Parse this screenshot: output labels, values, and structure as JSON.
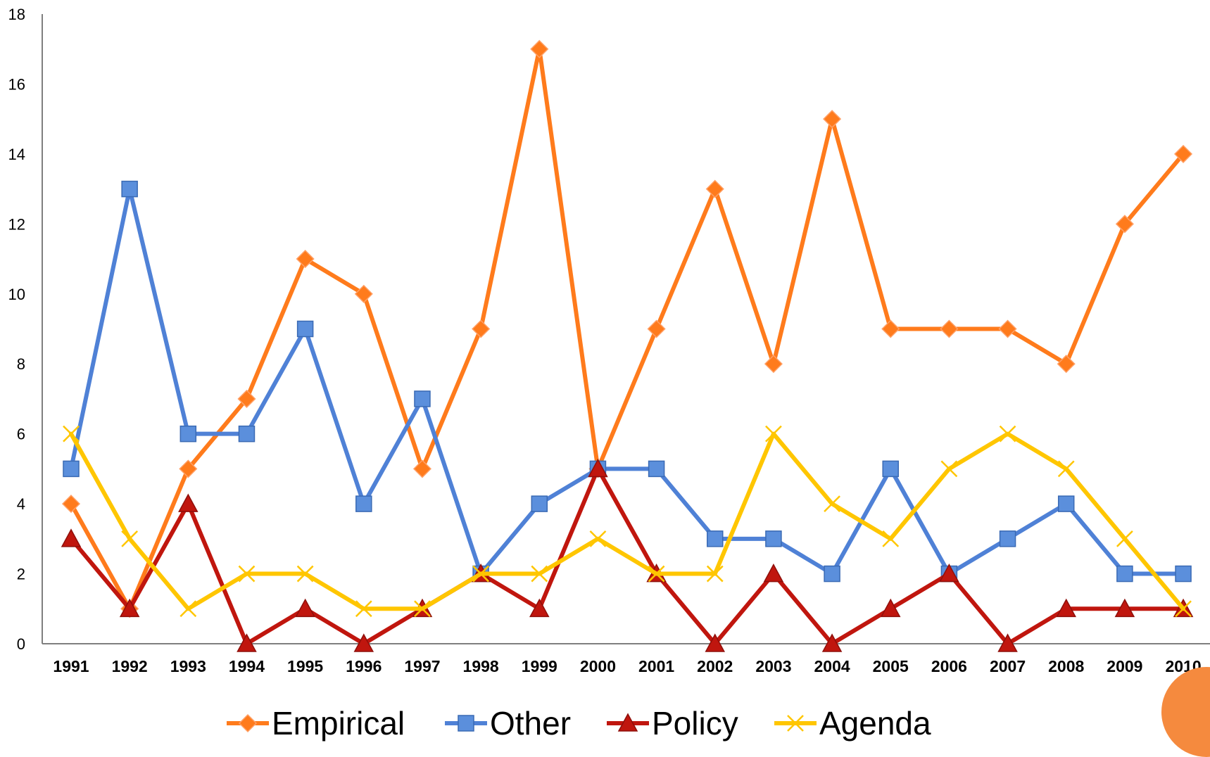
{
  "chart_data": {
    "type": "line",
    "x": [
      "1991",
      "1992",
      "1993",
      "1994",
      "1995",
      "1996",
      "1997",
      "1998",
      "1999",
      "2000",
      "2001",
      "2002",
      "2003",
      "2004",
      "2005",
      "2006",
      "2007",
      "2008",
      "2009",
      "2010"
    ],
    "ylim": [
      0,
      18
    ],
    "yticks": [
      "0",
      "2",
      "4",
      "6",
      "8",
      "10",
      "12",
      "14",
      "16",
      "18"
    ],
    "grid": false,
    "legend": "bottom",
    "series": [
      {
        "name": "Empirical",
        "color": "#ff7b1c",
        "marker": "diamond",
        "values": [
          4,
          1,
          5,
          7,
          11,
          10,
          5,
          9,
          17,
          5,
          9,
          13,
          8,
          15,
          9,
          9,
          9,
          8,
          12,
          14
        ]
      },
      {
        "name": "Other",
        "color": "#4f81d6",
        "marker": "square",
        "values": [
          5,
          13,
          6,
          6,
          9,
          4,
          7,
          2,
          4,
          5,
          5,
          3,
          3,
          2,
          5,
          2,
          3,
          4,
          2,
          2
        ]
      },
      {
        "name": "Policy",
        "color": "#c0160e",
        "marker": "triangle",
        "values": [
          3,
          1,
          4,
          0,
          1,
          0,
          1,
          2,
          1,
          5,
          2,
          0,
          2,
          0,
          1,
          2,
          0,
          1,
          1,
          1
        ]
      },
      {
        "name": "Agenda",
        "color": "#ffc600",
        "marker": "x",
        "values": [
          6,
          3,
          1,
          2,
          2,
          1,
          1,
          2,
          2,
          3,
          2,
          2,
          6,
          4,
          3,
          5,
          6,
          5,
          3,
          1
        ]
      }
    ]
  }
}
